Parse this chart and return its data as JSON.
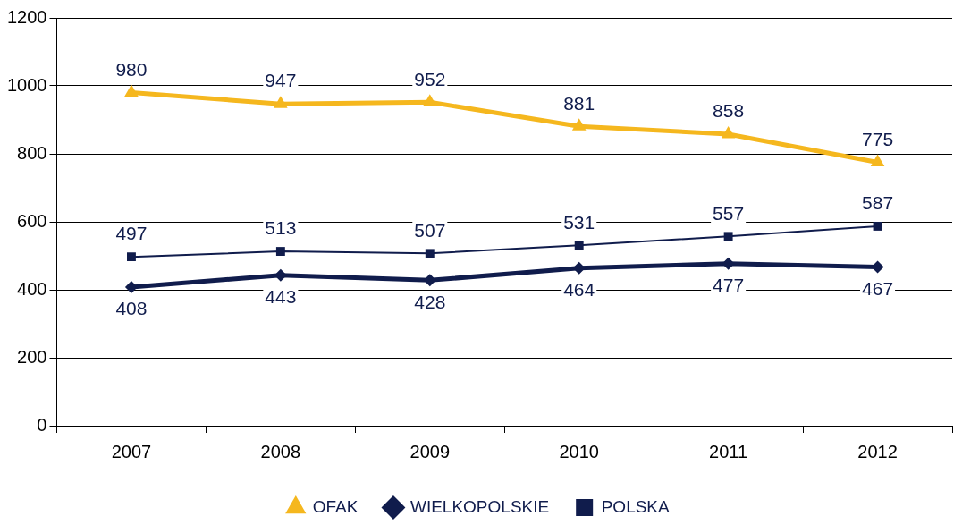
{
  "chart_data": {
    "type": "line",
    "categories": [
      "2007",
      "2008",
      "2009",
      "2010",
      "2011",
      "2012"
    ],
    "series": [
      {
        "name": "OFAK",
        "color": "#f5b71e",
        "marker": "triangle",
        "values": [
          980,
          947,
          952,
          881,
          858,
          775
        ]
      },
      {
        "name": "WIELKOPOLSKIE",
        "color": "#101c4c",
        "marker": "diamond",
        "values": [
          408,
          443,
          428,
          464,
          477,
          467
        ]
      },
      {
        "name": "POLSKA",
        "color": "#101c4c",
        "marker": "square",
        "values": [
          497,
          513,
          507,
          531,
          557,
          587
        ]
      }
    ],
    "ylim": [
      0,
      1200
    ],
    "yticks": [
      0,
      200,
      400,
      600,
      800,
      1000,
      1200
    ],
    "grid": "y",
    "legend": "bottom",
    "data_labels": true,
    "line_style": "solid"
  }
}
